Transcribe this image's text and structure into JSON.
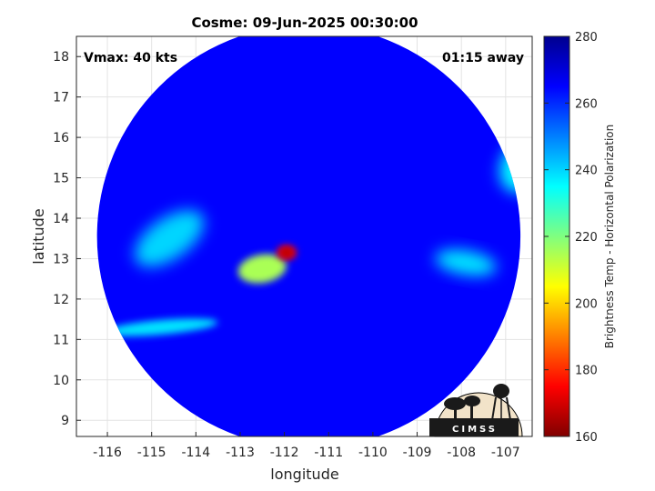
{
  "chart_data": {
    "type": "heatmap",
    "title": "Cosme: 09-Jun-2025 00:30:00",
    "xlabel": "longitude",
    "ylabel": "latitude",
    "xlim": [
      -116.7,
      -106.4
    ],
    "ylim": [
      8.6,
      18.5
    ],
    "xticks": [
      -116,
      -115,
      -114,
      -113,
      -112,
      -111,
      -110,
      -109,
      -108,
      -107
    ],
    "yticks": [
      9,
      10,
      11,
      12,
      13,
      14,
      15,
      16,
      17,
      18
    ],
    "grid": true,
    "annotations": {
      "vmax": "Vmax: 40 kts",
      "time_away": "01:15 away"
    },
    "colorbar": {
      "label": "Brightness Temp - Horizontal Polarization",
      "min": 160,
      "max": 280,
      "ticks": [
        160,
        180,
        200,
        220,
        240,
        260,
        280
      ],
      "colormap": "jet"
    },
    "swath": {
      "center_lon": -111.45,
      "center_lat": 13.55,
      "radius_deg": 5.0
    },
    "features": [
      {
        "name": "eye",
        "lon": -111.95,
        "lat": 13.15,
        "temp": 175
      },
      {
        "name": "inner-band",
        "lon": -112.5,
        "lat": 12.75,
        "temp": 215
      },
      {
        "name": "west-band",
        "lon": -114.6,
        "lat": 13.5,
        "temp": 240
      },
      {
        "name": "south-band",
        "lon": -114.8,
        "lat": 11.3,
        "temp": 238
      },
      {
        "name": "east-band",
        "lon": -107.9,
        "lat": 12.9,
        "temp": 238
      },
      {
        "name": "northeast-edge",
        "lon": -106.6,
        "lat": 15.3,
        "temp": 235
      },
      {
        "name": "background",
        "temp": 265
      }
    ]
  },
  "logo": {
    "text": "CIMSS"
  }
}
